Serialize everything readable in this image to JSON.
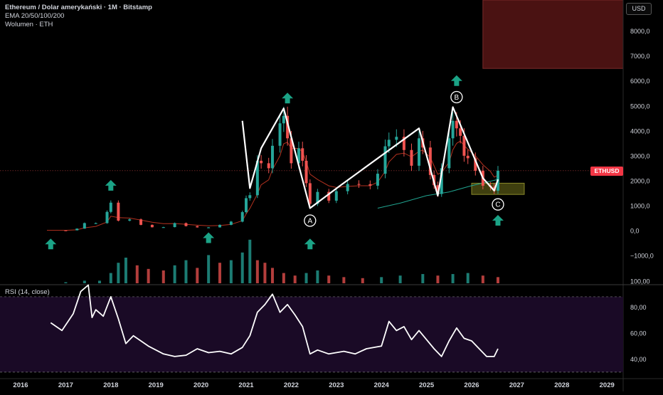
{
  "header": {
    "title": "Ethereum / Dolar amerykański · 1M · Bitstamp",
    "ema_label": "EMA 20/50/100/200",
    "volume_label": "Wolumen · ETH"
  },
  "currency_button": "USD",
  "price_tag": "ETHUSD",
  "rsi_label": "RSI (14, close)",
  "colors": {
    "up": "#26a69a",
    "down": "#ef5350",
    "ema": "#b2311f",
    "ema_long": "#20a38f",
    "rsi_line": "#ffffff",
    "rsi_band": "#1a0a26",
    "arrow": "#1ba386",
    "pattern": "#ffffff",
    "target_zone": "#4a4a12",
    "top_zone": "#4a1212"
  },
  "icons": {
    "signal_arrow": "up-arrow-icon"
  },
  "chart_data": [
    {
      "type": "candlestick",
      "title": "Ethereum / Dolar amerykański · 1M · Bitstamp",
      "x_ticks": [
        "2016",
        "2017",
        "2018",
        "2019",
        "2020",
        "2021",
        "2022",
        "2023",
        "2024",
        "2025",
        "2026",
        "2027",
        "2028",
        "2029"
      ],
      "y_ticks": [
        "8000,0",
        "7000,0",
        "6000,0",
        "5000,0",
        "4000,0",
        "3000,0",
        "2000,0",
        "1000,0",
        "0,0",
        "−1000,0"
      ],
      "ylim": [
        -1200,
        9000
      ],
      "close_series": [
        {
          "date": "2016-08",
          "close": 12
        },
        {
          "date": "2017-01",
          "close": 11
        },
        {
          "date": "2017-04",
          "close": 80
        },
        {
          "date": "2017-06",
          "close": 300
        },
        {
          "date": "2017-09",
          "close": 300
        },
        {
          "date": "2017-12",
          "close": 750
        },
        {
          "date": "2018-01",
          "close": 1120
        },
        {
          "date": "2018-03",
          "close": 400
        },
        {
          "date": "2018-06",
          "close": 450
        },
        {
          "date": "2018-09",
          "close": 230
        },
        {
          "date": "2018-12",
          "close": 135
        },
        {
          "date": "2019-03",
          "close": 140
        },
        {
          "date": "2019-06",
          "close": 300
        },
        {
          "date": "2019-09",
          "close": 180
        },
        {
          "date": "2019-12",
          "close": 130
        },
        {
          "date": "2020-03",
          "close": 130
        },
        {
          "date": "2020-06",
          "close": 230
        },
        {
          "date": "2020-09",
          "close": 360
        },
        {
          "date": "2020-12",
          "close": 740
        },
        {
          "date": "2021-01",
          "close": 1300
        },
        {
          "date": "2021-02",
          "close": 1420
        },
        {
          "date": "2021-04",
          "close": 2800
        },
        {
          "date": "2021-05",
          "close": 2700
        },
        {
          "date": "2021-07",
          "close": 2500
        },
        {
          "date": "2021-08",
          "close": 3400
        },
        {
          "date": "2021-10",
          "close": 4300
        },
        {
          "date": "2021-11",
          "close": 4600
        },
        {
          "date": "2021-12",
          "close": 3700
        },
        {
          "date": "2022-01",
          "close": 2700
        },
        {
          "date": "2022-03",
          "close": 3300
        },
        {
          "date": "2022-04",
          "close": 2800
        },
        {
          "date": "2022-05",
          "close": 1900
        },
        {
          "date": "2022-06",
          "close": 1070
        },
        {
          "date": "2022-08",
          "close": 1550
        },
        {
          "date": "2022-11",
          "close": 1200
        },
        {
          "date": "2023-01",
          "close": 1580
        },
        {
          "date": "2023-04",
          "close": 1870
        },
        {
          "date": "2023-07",
          "close": 1860
        },
        {
          "date": "2023-10",
          "close": 1800
        },
        {
          "date": "2023-12",
          "close": 2280
        },
        {
          "date": "2024-02",
          "close": 3380
        },
        {
          "date": "2024-03",
          "close": 3640
        },
        {
          "date": "2024-05",
          "close": 3760
        },
        {
          "date": "2024-07",
          "close": 3230
        },
        {
          "date": "2024-09",
          "close": 2600
        },
        {
          "date": "2024-11",
          "close": 3700
        },
        {
          "date": "2024-12",
          "close": 3330
        },
        {
          "date": "2025-02",
          "close": 2230
        },
        {
          "date": "2025-03",
          "close": 1820
        },
        {
          "date": "2025-04",
          "close": 1470
        },
        {
          "date": "2025-05",
          "close": 2500
        },
        {
          "date": "2025-07",
          "close": 3700
        },
        {
          "date": "2025-08",
          "close": 4400
        },
        {
          "date": "2025-09",
          "close": 4100
        },
        {
          "date": "2025-10",
          "close": 3800
        },
        {
          "date": "2025-11",
          "close": 3000
        },
        {
          "date": "2025-12",
          "close": 2900
        },
        {
          "date": "2026-02",
          "close": 2400
        },
        {
          "date": "2026-04",
          "close": 1800
        },
        {
          "date": "2026-06",
          "close": 1750
        },
        {
          "date": "2026-07",
          "close": 1600
        },
        {
          "date": "2026-08",
          "close": 2400
        }
      ],
      "ema_long": [
        {
          "date": "2023-12",
          "value": 900
        },
        {
          "date": "2024-06",
          "value": 1100
        },
        {
          "date": "2025-01",
          "value": 1400
        },
        {
          "date": "2025-07",
          "value": 1550
        },
        {
          "date": "2026-01",
          "value": 1800
        },
        {
          "date": "2026-08",
          "value": 2050
        }
      ],
      "pattern_labels": [
        "A",
        "B",
        "C"
      ],
      "pattern_path": [
        {
          "date": "2020-12",
          "price": 4400
        },
        {
          "date": "2021-02",
          "price": 1700
        },
        {
          "date": "2021-05",
          "price": 3300
        },
        {
          "date": "2021-11",
          "price": 4900
        },
        {
          "date": "2022-06",
          "price": 900
        },
        {
          "date": "2023-02",
          "price": 1800
        },
        {
          "date": "2024-11",
          "price": 4100
        },
        {
          "date": "2025-04",
          "price": 1400
        },
        {
          "date": "2025-08",
          "price": 4950
        },
        {
          "date": "2026-04",
          "price": 2100
        },
        {
          "date": "2026-07",
          "price": 1600
        },
        {
          "date": "2026-08",
          "price": 2050
        }
      ],
      "label_points": [
        {
          "label": "A",
          "date": "2022-06",
          "price": 400
        },
        {
          "label": "B",
          "date": "2025-09",
          "price": 5350
        },
        {
          "label": "C",
          "date": "2026-08",
          "price": 1050
        }
      ],
      "arrow_points": [
        {
          "date": "2016-09",
          "price": -550
        },
        {
          "date": "2018-01",
          "price": 1800
        },
        {
          "date": "2020-03",
          "price": -300
        },
        {
          "date": "2021-12",
          "price": 5300
        },
        {
          "date": "2022-06",
          "price": -550
        },
        {
          "date": "2025-09",
          "price": 6000
        },
        {
          "date": "2026-08",
          "price": 400
        }
      ],
      "target_zone": {
        "from": "2026-01",
        "to": "2027-03",
        "low": 1450,
        "high": 1900
      },
      "top_zone": {
        "from": "2026-04",
        "to": "2029-08",
        "low": 6500,
        "high": 9000
      },
      "price_line": 2400,
      "volume": [
        {
          "date": "2017-01",
          "v": 2
        },
        {
          "date": "2017-06",
          "v": 5
        },
        {
          "date": "2017-10",
          "v": 5
        },
        {
          "date": "2018-01",
          "v": 20
        },
        {
          "date": "2018-03",
          "v": 40
        },
        {
          "date": "2018-05",
          "v": 50
        },
        {
          "date": "2018-08",
          "v": 35
        },
        {
          "date": "2018-11",
          "v": 28
        },
        {
          "date": "2019-03",
          "v": 25
        },
        {
          "date": "2019-06",
          "v": 35
        },
        {
          "date": "2019-09",
          "v": 45
        },
        {
          "date": "2019-12",
          "v": 30
        },
        {
          "date": "2020-03",
          "v": 55
        },
        {
          "date": "2020-06",
          "v": 40
        },
        {
          "date": "2020-09",
          "v": 45
        },
        {
          "date": "2020-12",
          "v": 60
        },
        {
          "date": "2021-02",
          "v": 85
        },
        {
          "date": "2021-04",
          "v": 45
        },
        {
          "date": "2021-06",
          "v": 40
        },
        {
          "date": "2021-08",
          "v": 30
        },
        {
          "date": "2021-11",
          "v": 20
        },
        {
          "date": "2022-02",
          "v": 15
        },
        {
          "date": "2022-05",
          "v": 20
        },
        {
          "date": "2022-08",
          "v": 25
        },
        {
          "date": "2022-11",
          "v": 15
        },
        {
          "date": "2023-03",
          "v": 12
        },
        {
          "date": "2023-08",
          "v": 10
        },
        {
          "date": "2024-01",
          "v": 12
        },
        {
          "date": "2024-06",
          "v": 15
        },
        {
          "date": "2024-12",
          "v": 18
        },
        {
          "date": "2025-04",
          "v": 15
        },
        {
          "date": "2025-08",
          "v": 18
        },
        {
          "date": "2025-12",
          "v": 20
        },
        {
          "date": "2026-04",
          "v": 15
        },
        {
          "date": "2026-08",
          "v": 12
        }
      ]
    },
    {
      "type": "line",
      "title": "RSI (14, close)",
      "y_ticks": [
        "100,00",
        "80,00",
        "60,00",
        "40,00"
      ],
      "ylim": [
        25,
        100
      ],
      "band": [
        30,
        88
      ],
      "series": [
        {
          "values": [
            {
              "date": "2016-09",
              "v": 68
            },
            {
              "date": "2016-12",
              "v": 62
            },
            {
              "date": "2017-03",
              "v": 75
            },
            {
              "date": "2017-05",
              "v": 92
            },
            {
              "date": "2017-07",
              "v": 97
            },
            {
              "date": "2017-08",
              "v": 72
            },
            {
              "date": "2017-09",
              "v": 78
            },
            {
              "date": "2017-11",
              "v": 73
            },
            {
              "date": "2018-01",
              "v": 88
            },
            {
              "date": "2018-03",
              "v": 71
            },
            {
              "date": "2018-05",
              "v": 52
            },
            {
              "date": "2018-07",
              "v": 58
            },
            {
              "date": "2018-11",
              "v": 50
            },
            {
              "date": "2019-03",
              "v": 44
            },
            {
              "date": "2019-06",
              "v": 42
            },
            {
              "date": "2019-09",
              "v": 43
            },
            {
              "date": "2019-12",
              "v": 48
            },
            {
              "date": "2020-03",
              "v": 45
            },
            {
              "date": "2020-06",
              "v": 46
            },
            {
              "date": "2020-09",
              "v": 44
            },
            {
              "date": "2020-12",
              "v": 49
            },
            {
              "date": "2021-02",
              "v": 58
            },
            {
              "date": "2021-04",
              "v": 76
            },
            {
              "date": "2021-06",
              "v": 82
            },
            {
              "date": "2021-08",
              "v": 90
            },
            {
              "date": "2021-10",
              "v": 76
            },
            {
              "date": "2021-12",
              "v": 82
            },
            {
              "date": "2022-02",
              "v": 74
            },
            {
              "date": "2022-04",
              "v": 65
            },
            {
              "date": "2022-06",
              "v": 44
            },
            {
              "date": "2022-08",
              "v": 47
            },
            {
              "date": "2022-11",
              "v": 44
            },
            {
              "date": "2023-03",
              "v": 46
            },
            {
              "date": "2023-06",
              "v": 44
            },
            {
              "date": "2023-09",
              "v": 48
            },
            {
              "date": "2024-01",
              "v": 50
            },
            {
              "date": "2024-03",
              "v": 69
            },
            {
              "date": "2024-05",
              "v": 62
            },
            {
              "date": "2024-07",
              "v": 65
            },
            {
              "date": "2024-09",
              "v": 55
            },
            {
              "date": "2024-11",
              "v": 62
            },
            {
              "date": "2025-01",
              "v": 55
            },
            {
              "date": "2025-03",
              "v": 48
            },
            {
              "date": "2025-05",
              "v": 42
            },
            {
              "date": "2025-07",
              "v": 54
            },
            {
              "date": "2025-09",
              "v": 64
            },
            {
              "date": "2025-11",
              "v": 56
            },
            {
              "date": "2026-01",
              "v": 54
            },
            {
              "date": "2026-03",
              "v": 48
            },
            {
              "date": "2026-05",
              "v": 42
            },
            {
              "date": "2026-07",
              "v": 42
            },
            {
              "date": "2026-08",
              "v": 48
            }
          ]
        }
      ]
    }
  ]
}
